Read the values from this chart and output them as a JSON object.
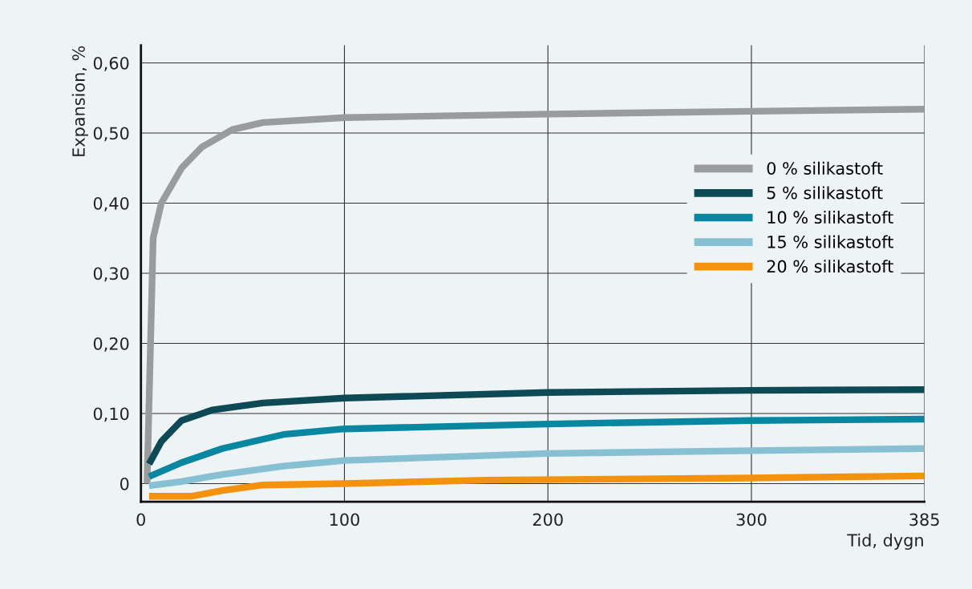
{
  "chart_data": {
    "type": "line",
    "xlabel": "Tid, dygn",
    "ylabel": "Expansion, %",
    "xlim": [
      0,
      385
    ],
    "xticks": [
      0,
      100,
      200,
      300,
      385
    ],
    "ylim": [
      -0.026,
      0.625
    ],
    "yticks": [
      {
        "value": 0,
        "label": "0"
      },
      {
        "value": 0.1,
        "label": "0,10"
      },
      {
        "value": 0.2,
        "label": "0,20"
      },
      {
        "value": 0.3,
        "label": "0,30"
      },
      {
        "value": 0.4,
        "label": "0,40"
      },
      {
        "value": 0.5,
        "label": "0,50"
      },
      {
        "value": 0.6,
        "label": "0,60"
      }
    ],
    "grid": true,
    "legend": "right",
    "marker": "none",
    "line_style": "solid",
    "series": [
      {
        "name": "0 % silikastoft",
        "color": "#9a9b9d",
        "x": [
          3,
          6,
          10,
          20,
          30,
          45,
          60,
          100,
          200,
          300,
          385
        ],
        "values": [
          0.0,
          0.35,
          0.4,
          0.45,
          0.48,
          0.505,
          0.515,
          0.522,
          0.527,
          0.531,
          0.534
        ]
      },
      {
        "name": "5 % silikastoft",
        "color": "#0e4a55",
        "x": [
          4,
          10,
          20,
          35,
          60,
          100,
          200,
          300,
          385
        ],
        "values": [
          0.028,
          0.06,
          0.09,
          0.105,
          0.115,
          0.122,
          0.13,
          0.133,
          0.134
        ]
      },
      {
        "name": "10 % silikastoft",
        "color": "#0a87a0",
        "x": [
          4,
          20,
          40,
          70,
          100,
          200,
          300,
          385
        ],
        "values": [
          0.01,
          0.03,
          0.05,
          0.07,
          0.078,
          0.085,
          0.09,
          0.092
        ]
      },
      {
        "name": "15 % silikastoft",
        "color": "#86c0d2",
        "x": [
          4,
          20,
          40,
          70,
          100,
          200,
          300,
          385
        ],
        "values": [
          -0.003,
          0.003,
          0.013,
          0.025,
          0.033,
          0.043,
          0.047,
          0.05
        ]
      },
      {
        "name": "20 % silikastoft",
        "color": "#f3920f",
        "x": [
          4,
          25,
          40,
          60,
          100,
          170,
          300,
          385
        ],
        "values": [
          -0.018,
          -0.018,
          -0.01,
          -0.002,
          0.0,
          0.005,
          0.008,
          0.011
        ]
      }
    ]
  }
}
